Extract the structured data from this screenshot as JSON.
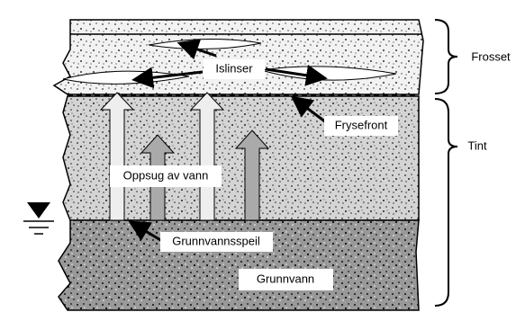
{
  "zones": {
    "frozen": "Frosset",
    "thawed": "Tint"
  },
  "labels": {
    "ice_lenses": "Islinser",
    "freezing_front": "Frysefront",
    "water_uptake": "Oppsug av vann",
    "water_table": "Grunnvannsspeil",
    "groundwater": "Grunnvann"
  }
}
